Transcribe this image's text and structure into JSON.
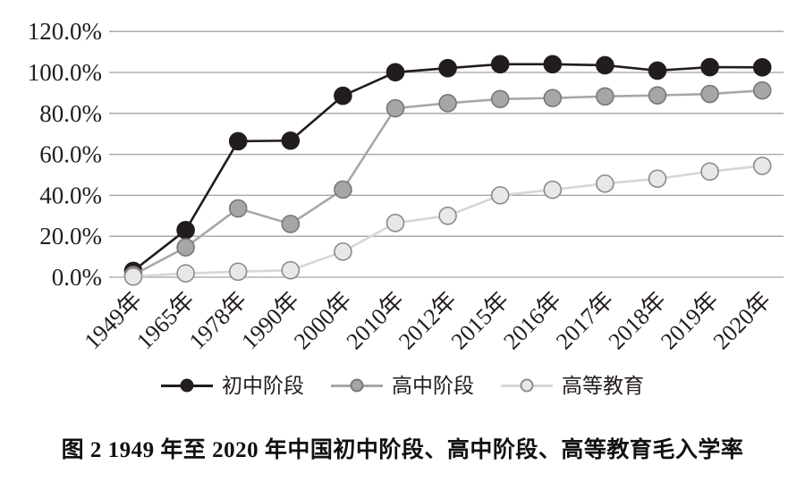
{
  "figure": {
    "caption": "图 2  1949 年至 2020 年中国初中阶段、高中阶段、高等教育毛入学率"
  },
  "chart_data": {
    "type": "line",
    "title": "",
    "xlabel": "",
    "ylabel": "",
    "categories": [
      "1949年",
      "1965年",
      "1978年",
      "1990年",
      "2000年",
      "2010年",
      "2012年",
      "2015年",
      "2016年",
      "2017年",
      "2018年",
      "2019年",
      "2020年"
    ],
    "ylim": [
      0,
      120
    ],
    "ytick_step": 20,
    "ytick_labels": [
      "0.0%",
      "20.0%",
      "40.0%",
      "60.0%",
      "80.0%",
      "100.0%",
      "120.0%"
    ],
    "grid": "horizontal-only",
    "gridline_color": "#a3a0a0",
    "text_color": "#231c1c",
    "legend_position": "bottom",
    "series": [
      {
        "name": "初中阶段",
        "values": [
          3.1,
          23.0,
          66.4,
          66.7,
          88.6,
          100.1,
          102.1,
          104.0,
          104.0,
          103.5,
          100.9,
          102.6,
          102.5
        ],
        "line_color": "#231c1c",
        "marker_fill": "#231c1c",
        "marker_stroke": "#231c1c"
      },
      {
        "name": "高中阶段",
        "values": [
          1.1,
          14.6,
          33.6,
          26.0,
          42.8,
          82.5,
          85.0,
          87.0,
          87.5,
          88.3,
          88.8,
          89.5,
          91.2
        ],
        "line_color": "#a9a6a6",
        "marker_fill": "#a8a5a5",
        "marker_stroke": "#7a7676"
      },
      {
        "name": "高等教育",
        "values": [
          0.3,
          1.9,
          2.7,
          3.4,
          12.5,
          26.5,
          30.0,
          40.0,
          42.7,
          45.7,
          48.1,
          51.6,
          54.4
        ],
        "line_color": "#d8d6d6",
        "marker_fill": "#e9e8e8",
        "marker_stroke": "#8e8a8a"
      }
    ]
  }
}
